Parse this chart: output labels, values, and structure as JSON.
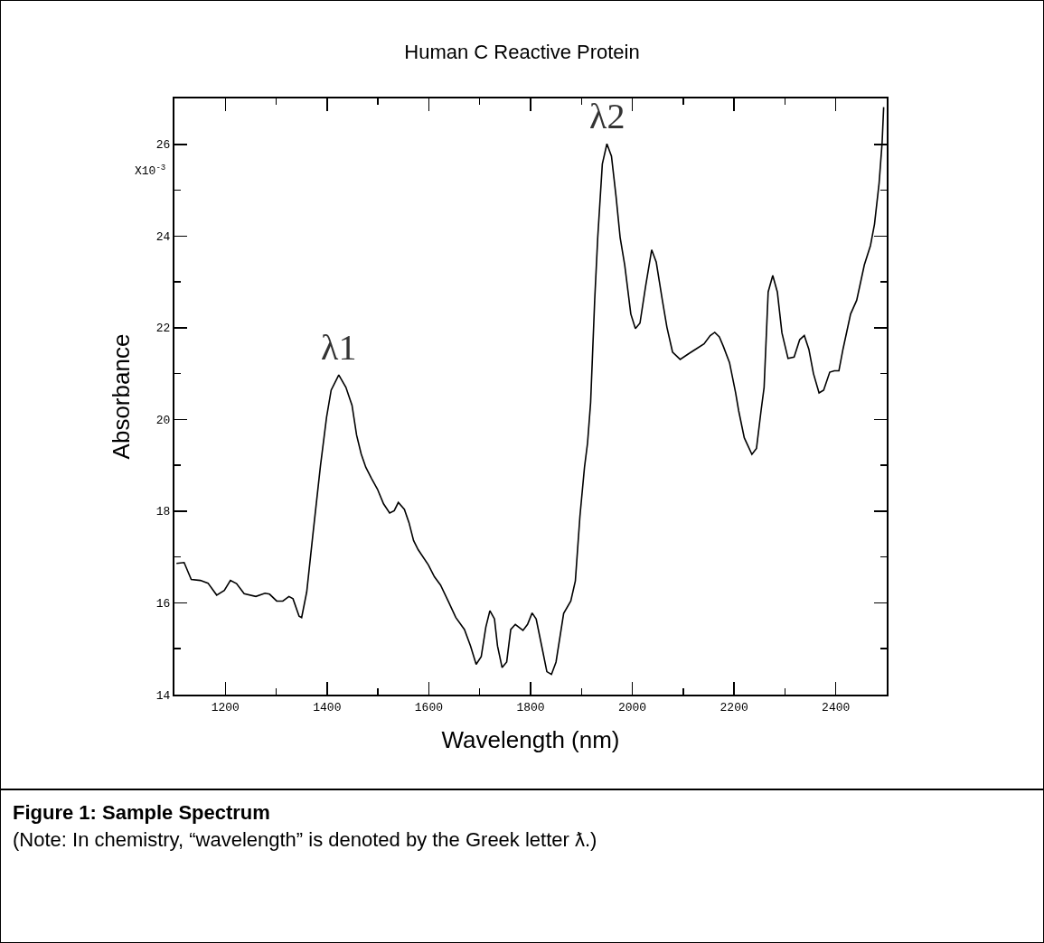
{
  "chart_data": {
    "type": "line",
    "title": "Human C Reactive Protein",
    "xlabel": "Wavelength (nm)",
    "ylabel": "Absorbance",
    "annotations": [
      "X10$^{-3}$",
      {
        "text": "λ1",
        "x": 1423,
        "y": 20.97
      },
      {
        "text": "λ2",
        "x": 1950,
        "y": 26.01
      },
      "Figure 1: Sample Spectrum",
      "(Note: In chemistry, “wavelength” is denoted by the Greek letter ƛ.)"
    ],
    "x": [
      1104,
      1119,
      1133,
      1151,
      1166,
      1183,
      1198,
      1210,
      1222,
      1237,
      1260,
      1278,
      1287,
      1301,
      1313,
      1325,
      1333,
      1345,
      1350,
      1360,
      1372,
      1387,
      1399,
      1408,
      1423,
      1437,
      1449,
      1458,
      1467,
      1476,
      1487,
      1499,
      1511,
      1523,
      1532,
      1540,
      1552,
      1561,
      1570,
      1579,
      1599,
      1611,
      1623,
      1638,
      1653,
      1670,
      1682,
      1693,
      1703,
      1712,
      1720,
      1729,
      1735,
      1744,
      1753,
      1761,
      1770,
      1785,
      1794,
      1803,
      1811,
      1824,
      1832,
      1841,
      1850,
      1865,
      1879,
      1888,
      1897,
      1906,
      1912,
      1918,
      1926,
      1932,
      1941,
      1950,
      1959,
      1968,
      1976,
      1985,
      1997,
      2006,
      2015,
      2026,
      2038,
      2047,
      2059,
      2068,
      2079,
      2094,
      2109,
      2120,
      2141,
      2153,
      2162,
      2171,
      2179,
      2191,
      2203,
      2209,
      2220,
      2235,
      2244,
      2253,
      2259,
      2267,
      2276,
      2285,
      2294,
      2306,
      2318,
      2329,
      2338,
      2347,
      2356,
      2367,
      2376,
      2388,
      2397,
      2406,
      2414,
      2429,
      2441,
      2456,
      2468,
      2476,
      2485,
      2491,
      2494
    ],
    "series": [
      {
        "color": "#000000",
        "values": [
          16.86,
          16.88,
          16.51,
          16.49,
          16.43,
          16.17,
          16.27,
          16.49,
          16.42,
          16.2,
          16.14,
          16.21,
          16.19,
          16.04,
          16.04,
          16.14,
          16.09,
          15.71,
          15.68,
          16.24,
          17.48,
          18.99,
          20.05,
          20.64,
          20.97,
          20.7,
          20.31,
          19.66,
          19.25,
          18.96,
          18.72,
          18.48,
          18.16,
          17.96,
          18.01,
          18.19,
          18.04,
          17.75,
          17.36,
          17.16,
          16.83,
          16.57,
          16.39,
          16.04,
          15.68,
          15.42,
          15.06,
          14.66,
          14.83,
          15.47,
          15.83,
          15.65,
          15.06,
          14.59,
          14.71,
          15.42,
          15.53,
          15.4,
          15.53,
          15.78,
          15.65,
          14.94,
          14.5,
          14.44,
          14.71,
          15.77,
          16.04,
          16.48,
          17.89,
          18.96,
          19.49,
          20.37,
          22.6,
          23.97,
          25.57,
          26.01,
          25.74,
          24.86,
          23.97,
          23.37,
          22.3,
          21.98,
          22.1,
          22.9,
          23.7,
          23.43,
          22.6,
          22.01,
          21.47,
          21.31,
          21.42,
          21.5,
          21.65,
          21.83,
          21.9,
          21.8,
          21.59,
          21.24,
          20.58,
          20.19,
          19.6,
          19.24,
          19.37,
          20.19,
          20.7,
          22.78,
          23.14,
          22.78,
          21.89,
          21.33,
          21.36,
          21.74,
          21.83,
          21.53,
          21.0,
          20.58,
          20.64,
          21.03,
          21.06,
          21.06,
          21.53,
          22.3,
          22.6,
          23.37,
          23.79,
          24.26,
          25.15,
          26.04,
          26.81
        ]
      }
    ],
    "xlim": [
      1100,
      2500
    ],
    "ylim": [
      14,
      27
    ],
    "xticks": [
      {
        "value": 1100,
        "label": null
      },
      1200,
      {
        "value": 1300,
        "label": null
      },
      1400,
      {
        "value": 1500,
        "label": null
      },
      1600,
      {
        "value": 1700,
        "label": null
      },
      1800,
      {
        "value": 1900,
        "label": null
      },
      2000,
      {
        "value": 2100,
        "label": null
      },
      2200,
      {
        "value": 2300,
        "label": null
      },
      2400,
      {
        "value": 2500,
        "label": null
      }
    ],
    "yticks": [
      14,
      {
        "value": 15,
        "label": null
      },
      16,
      {
        "value": 17,
        "label": null
      },
      18,
      {
        "value": 19,
        "label": null
      },
      20,
      {
        "value": 21,
        "label": null
      },
      22,
      {
        "value": 23,
        "label": null
      },
      24,
      {
        "value": 25,
        "label": null
      },
      26,
      {
        "value": 27,
        "label": null
      }
    ],
    "grid": false,
    "marker": "none",
    "line_style": "solid"
  }
}
